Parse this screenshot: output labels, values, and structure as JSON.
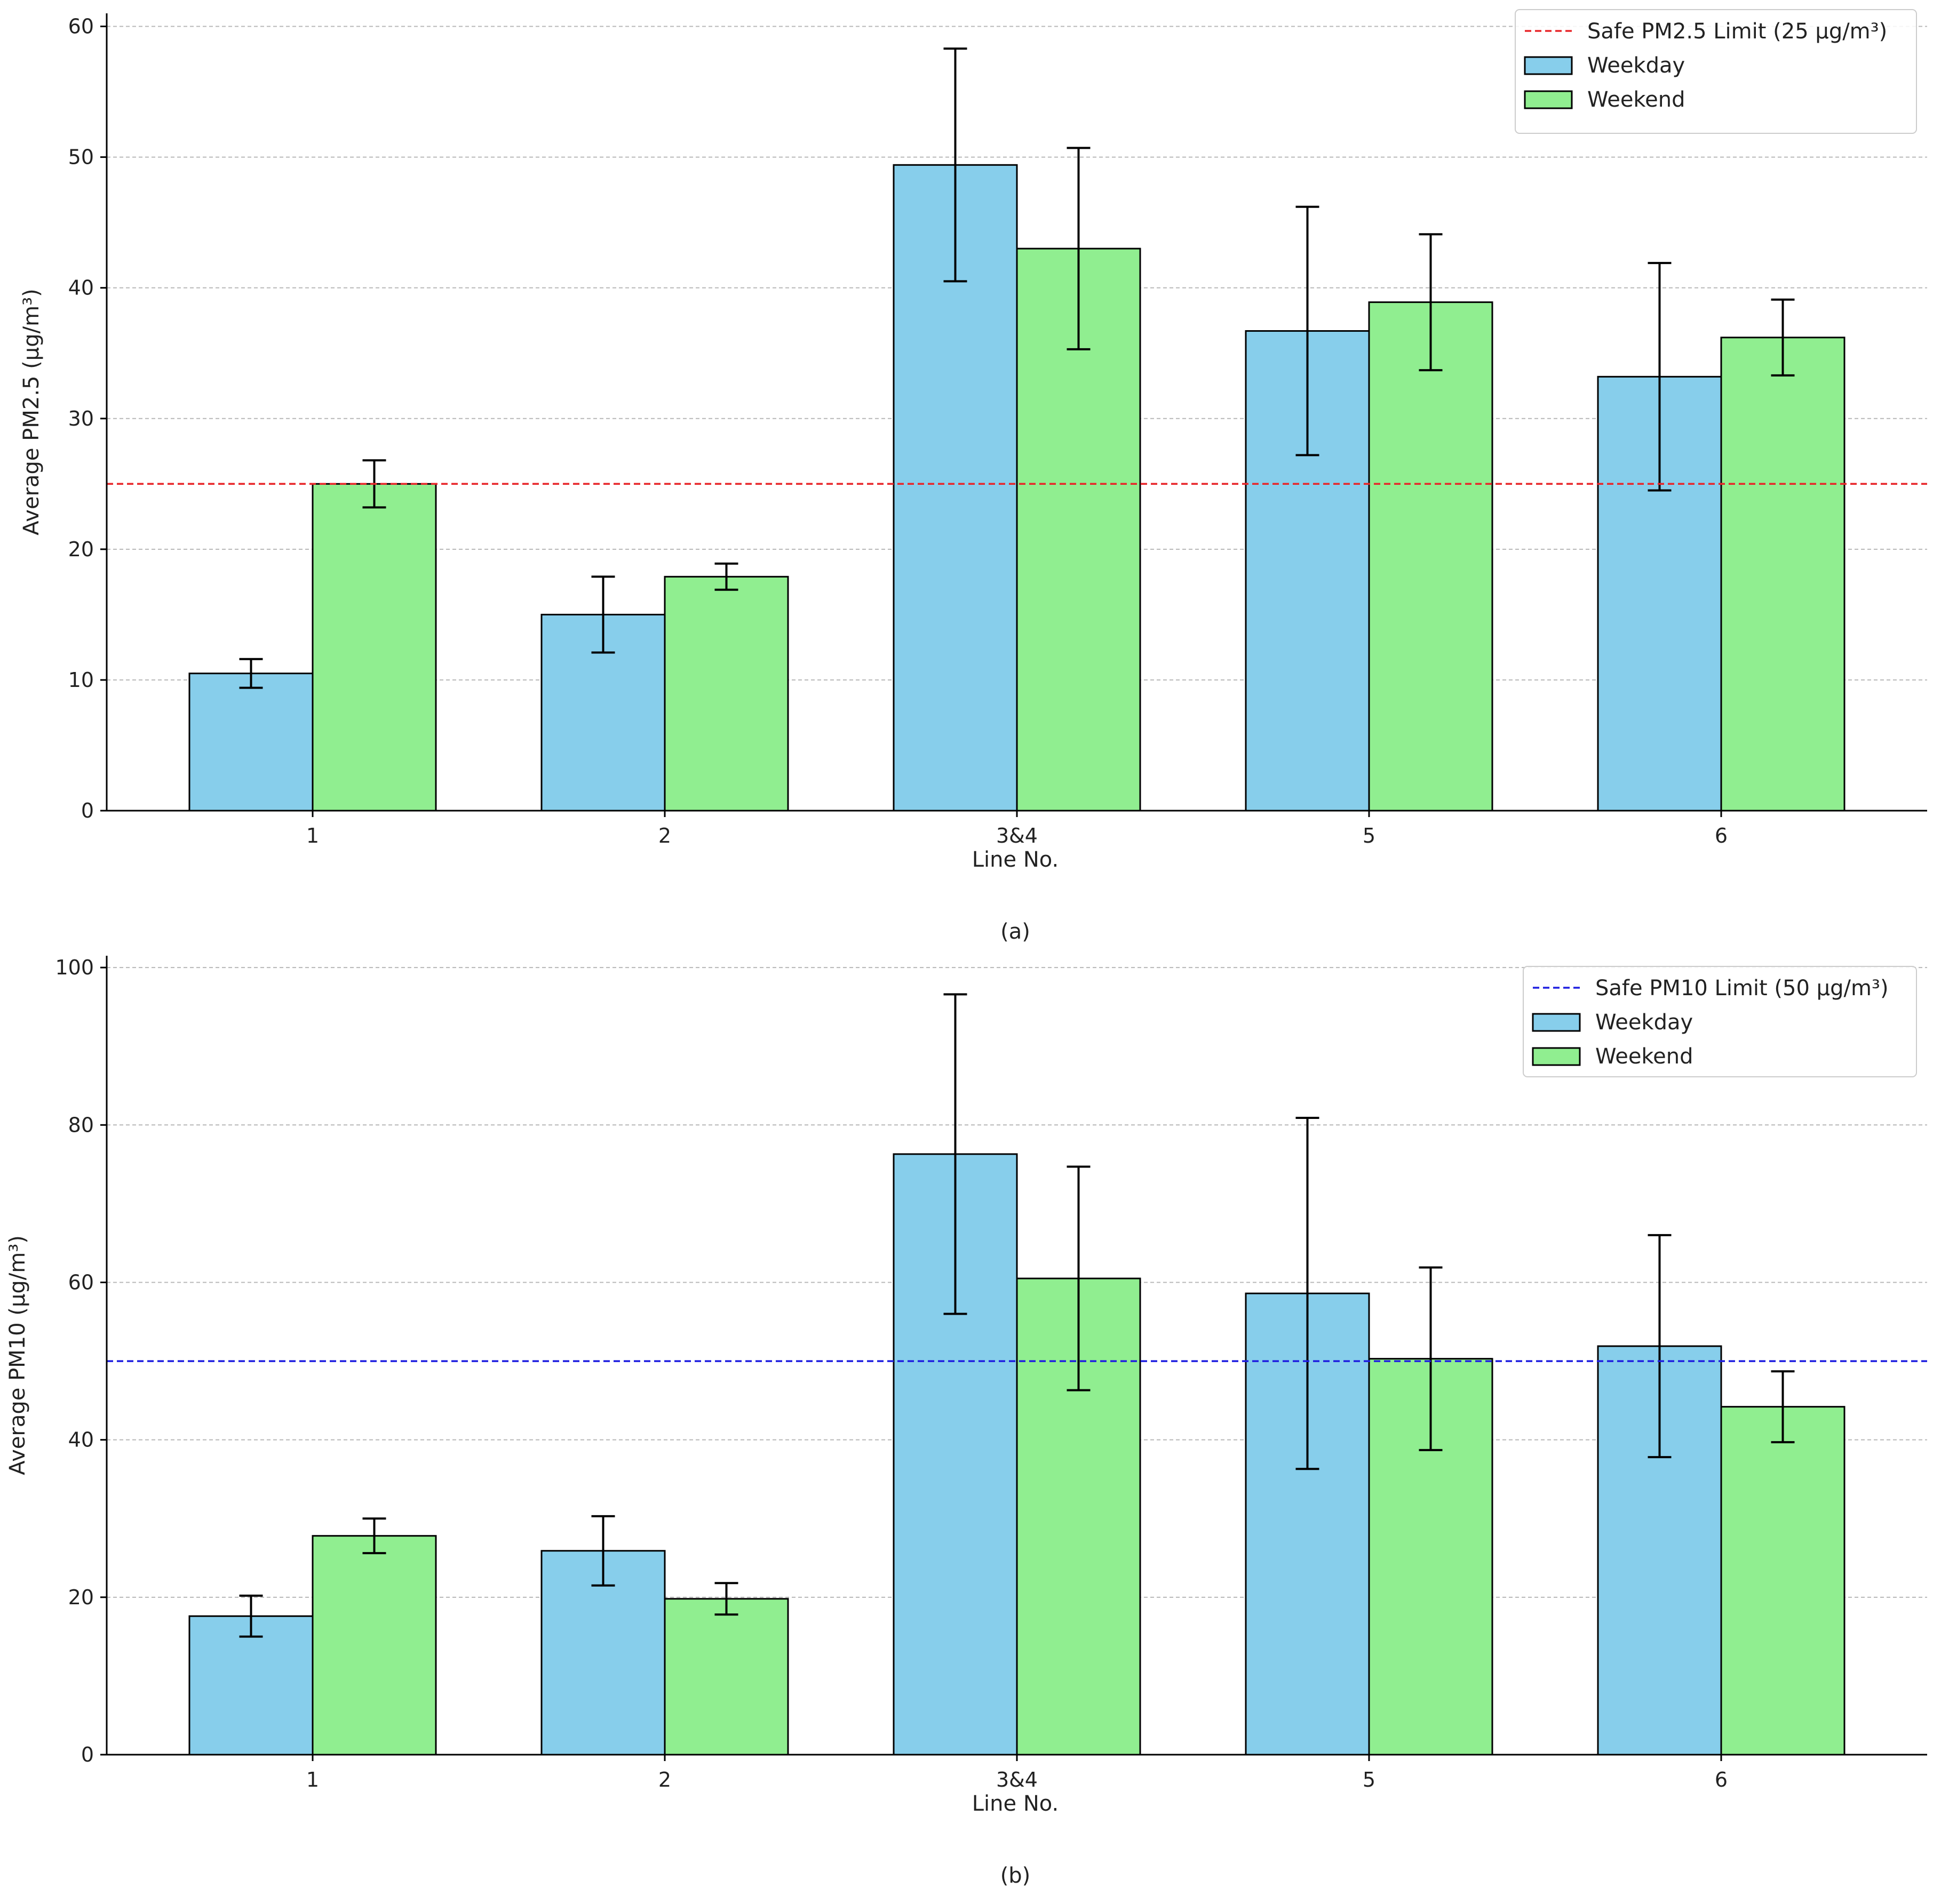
{
  "chart_data": [
    {
      "type": "bar",
      "panel_label": "(a)",
      "categories": [
        "1",
        "2",
        "3&4",
        "5",
        "6"
      ],
      "series": [
        {
          "name": "Weekday",
          "color": "#87ceeb",
          "values": [
            10.5,
            15.0,
            49.4,
            36.7,
            33.2
          ],
          "errors": [
            1.1,
            2.9,
            8.9,
            9.5,
            8.7
          ]
        },
        {
          "name": "Weekend",
          "color": "#90ee90",
          "values": [
            25.0,
            17.9,
            43.0,
            38.9,
            36.2
          ],
          "errors": [
            1.8,
            1.0,
            7.7,
            5.2,
            2.9
          ]
        }
      ],
      "reference_line": {
        "label": "Safe PM2.5 Limit (25 µg/m³)",
        "value": 25,
        "color": "#e8262a"
      },
      "xlabel": "Line No.",
      "ylabel": "Average PM2.5 (µg/m³)",
      "ylim": [
        0,
        61
      ],
      "yticks": [
        0,
        10,
        20,
        30,
        40,
        50,
        60
      ],
      "grid": "y-dashed",
      "legend_position": "top-right"
    },
    {
      "type": "bar",
      "panel_label": "(b)",
      "categories": [
        "1",
        "2",
        "3&4",
        "5",
        "6"
      ],
      "series": [
        {
          "name": "Weekday",
          "color": "#87ceeb",
          "values": [
            17.6,
            25.9,
            76.3,
            58.6,
            51.9
          ],
          "errors": [
            2.6,
            4.4,
            20.3,
            22.3,
            14.1
          ]
        },
        {
          "name": "Weekend",
          "color": "#90ee90",
          "values": [
            27.8,
            19.8,
            60.5,
            50.3,
            44.2
          ],
          "errors": [
            2.2,
            2.0,
            14.2,
            11.6,
            4.5
          ]
        }
      ],
      "reference_line": {
        "label": "Safe PM10 Limit (50 µg/m³)",
        "value": 50,
        "color": "#1f1fe0"
      },
      "xlabel": "Line No.",
      "ylabel": "Average PM10 (µg/m³)",
      "ylim": [
        0,
        101.5
      ],
      "yticks": [
        0,
        20,
        40,
        60,
        80,
        100
      ],
      "grid": "y-dashed",
      "legend_position": "top-right"
    }
  ]
}
